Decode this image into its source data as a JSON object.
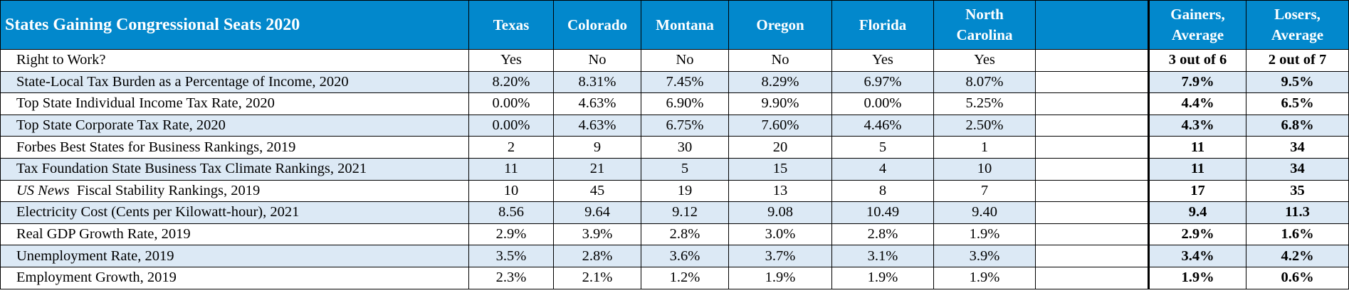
{
  "table": {
    "title": "States Gaining Congressional Seats 2020",
    "states": [
      "Texas",
      "Colorado",
      "Montana",
      "Oregon",
      "Florida",
      "North Carolina"
    ],
    "gainers_avg_header": "Gainers, Average",
    "losers_avg_header": "Losers, Average",
    "rows": [
      {
        "label": "Right to Work?",
        "values": [
          "Yes",
          "No",
          "No",
          "No",
          "Yes",
          "Yes"
        ],
        "gainers_avg": "3 out of 6",
        "losers_avg": "2 out of 7"
      },
      {
        "label": "State-Local Tax Burden as a Percentage of Income, 2020",
        "values": [
          "8.20%",
          "8.31%",
          "7.45%",
          "8.29%",
          "6.97%",
          "8.07%"
        ],
        "gainers_avg": "7.9%",
        "losers_avg": "9.5%"
      },
      {
        "label": "Top State Individual Income Tax Rate, 2020",
        "values": [
          "0.00%",
          "4.63%",
          "6.90%",
          "9.90%",
          "0.00%",
          "5.25%"
        ],
        "gainers_avg": "4.4%",
        "losers_avg": "6.5%"
      },
      {
        "label": "Top State Corporate Tax Rate, 2020",
        "values": [
          "0.00%",
          "4.63%",
          "6.75%",
          "7.60%",
          "4.46%",
          "2.50%"
        ],
        "gainers_avg": "4.3%",
        "losers_avg": "6.8%"
      },
      {
        "label": "Forbes Best States for Business Rankings, 2019",
        "values": [
          "2",
          "9",
          "30",
          "20",
          "5",
          "1"
        ],
        "gainers_avg": "11",
        "losers_avg": "34"
      },
      {
        "label": "Tax Foundation State Business Tax Climate Rankings, 2021",
        "values": [
          "11",
          "21",
          "5",
          "15",
          "4",
          "10"
        ],
        "gainers_avg": "11",
        "losers_avg": "34"
      },
      {
        "label_italic": "US News",
        "label": "Fiscal Stability Rankings, 2019",
        "values": [
          "10",
          "45",
          "19",
          "13",
          "8",
          "7"
        ],
        "gainers_avg": "17",
        "losers_avg": "35"
      },
      {
        "label": "Electricity Cost (Cents per Kilowatt-hour), 2021",
        "values": [
          "8.56",
          "9.64",
          "9.12",
          "9.08",
          "10.49",
          "9.40"
        ],
        "gainers_avg": "9.4",
        "losers_avg": "11.3"
      },
      {
        "label": "Real GDP Growth Rate, 2019",
        "values": [
          "2.9%",
          "3.9%",
          "2.8%",
          "3.0%",
          "2.8%",
          "1.9%"
        ],
        "gainers_avg": "2.9%",
        "losers_avg": "1.6%"
      },
      {
        "label": "Unemployment Rate, 2019",
        "values": [
          "3.5%",
          "2.8%",
          "3.6%",
          "3.7%",
          "3.1%",
          "3.9%"
        ],
        "gainers_avg": "3.4%",
        "losers_avg": "4.2%"
      },
      {
        "label": "Employment Growth, 2019",
        "values": [
          "2.3%",
          "2.1%",
          "1.2%",
          "1.9%",
          "1.9%",
          "1.9%"
        ],
        "gainers_avg": "1.9%",
        "losers_avg": "0.6%"
      }
    ]
  },
  "colors": {
    "header_bg": "#0288cc",
    "row_shade": "#dce9f5"
  }
}
